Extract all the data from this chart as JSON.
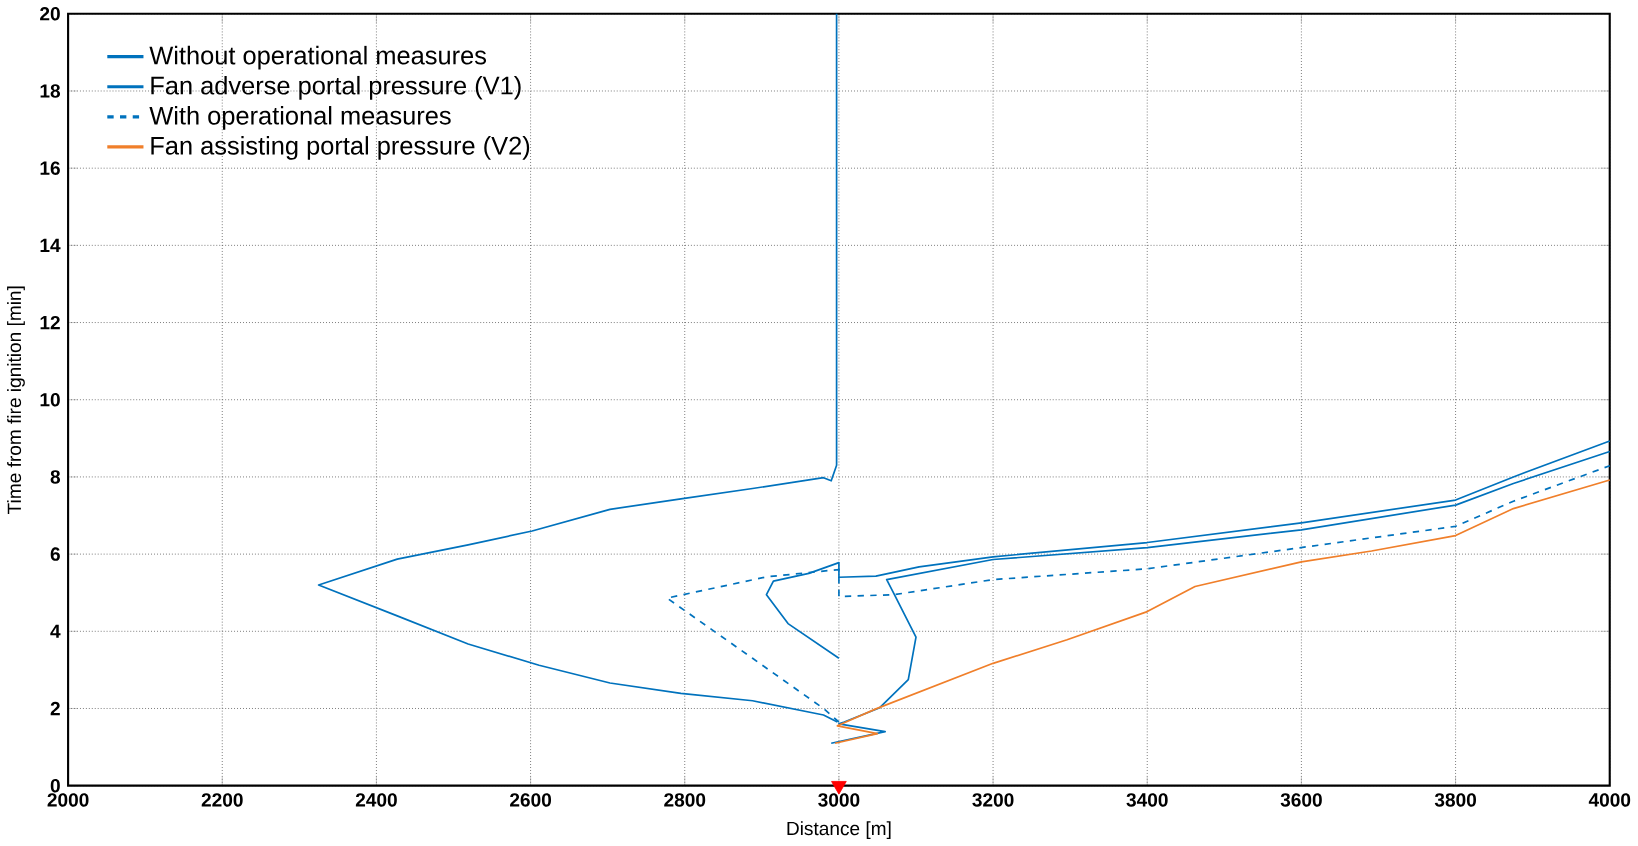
{
  "chart_data": {
    "type": "line",
    "xlabel": "Distance [m]",
    "ylabel": "Time from fire ignition [min]",
    "xlim": [
      2000,
      4000
    ],
    "ylim": [
      0,
      20
    ],
    "xticks": [
      2000,
      2200,
      2400,
      2600,
      2800,
      3000,
      3200,
      3400,
      3600,
      3800,
      4000
    ],
    "yticks": [
      0,
      2,
      4,
      6,
      8,
      10,
      12,
      14,
      16,
      18,
      20
    ],
    "grid": true,
    "legend": "top left",
    "series": [
      {
        "name": "Without operational measures",
        "color": "#0072bd",
        "line_style": "solid",
        "x": [
          2997,
          2997,
          2990,
          2980,
          2888,
          2795,
          2703,
          2602,
          2519,
          2427,
          2325,
          2427,
          2519,
          2611,
          2703,
          2795,
          2888,
          2980,
          2998
        ],
        "values": [
          20,
          8.3,
          7.9,
          7.98,
          7.7,
          7.43,
          7.16,
          6.6,
          6.24,
          5.87,
          5.2,
          4.4,
          3.67,
          3.12,
          2.66,
          2.39,
          2.2,
          1.83,
          1.65
        ]
      },
      {
        "name": "Fan adverse portal pressure (V1)",
        "color": "#0072bd",
        "line_style": "solid",
        "x": [
          3000,
          2934,
          2906,
          2915,
          2961,
          3000,
          3000,
          3048,
          3104,
          3200,
          3400,
          3600,
          3800,
          3875,
          4000
        ],
        "values": [
          3.3,
          4.2,
          4.95,
          5.3,
          5.5,
          5.78,
          5.4,
          5.43,
          5.67,
          5.93,
          6.3,
          6.81,
          7.4,
          8.0,
          8.93
        ]
      },
      {
        "color": "#0072bd",
        "line_style": "solid",
        "x": [
          2990,
          3060,
          3000,
          3007,
          3053,
          3090,
          3100,
          3072,
          3062,
          3200,
          3400,
          3600,
          3800,
          3875,
          4000
        ],
        "values": [
          1.1,
          1.4,
          1.6,
          1.65,
          2.02,
          2.75,
          3.85,
          4.95,
          5.34,
          5.86,
          6.17,
          6.63,
          7.27,
          7.83,
          8.66
        ]
      },
      {
        "name": "With operational measures",
        "color": "#0072bd",
        "line_style": "dashed",
        "x": [
          3000,
          2980,
          2888,
          2777,
          2906,
          3000,
          3000,
          3072,
          3200,
          3400,
          3600,
          3800,
          3875,
          4000
        ],
        "values": [
          1.65,
          2.0,
          3.3,
          4.86,
          5.41,
          5.6,
          4.9,
          4.95,
          5.34,
          5.62,
          6.17,
          6.72,
          7.37,
          8.29
        ]
      },
      {
        "name": "Fan assisting portal pressure (V2)",
        "color": "#f07f2a",
        "line_style": "solid",
        "x": [
          2995,
          3050,
          2998,
          3048,
          3200,
          3296,
          3400,
          3462,
          3600,
          3691,
          3800,
          3875,
          4000
        ],
        "values": [
          1.1,
          1.35,
          1.55,
          1.99,
          3.17,
          3.78,
          4.51,
          5.16,
          5.8,
          6.08,
          6.48,
          7.18,
          7.92
        ]
      },
      {
        "type": "scatter",
        "color": "#ff0000",
        "marker": "triangle",
        "x": [
          3000
        ],
        "values": [
          0
        ]
      }
    ]
  }
}
